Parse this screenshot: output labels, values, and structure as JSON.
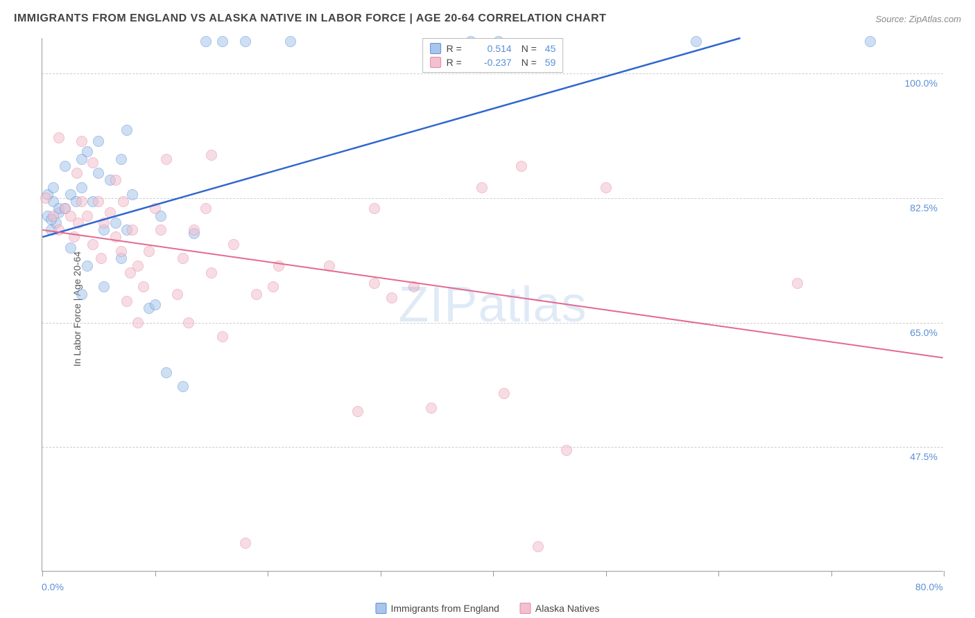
{
  "header": {
    "title": "IMMIGRANTS FROM ENGLAND VS ALASKA NATIVE IN LABOR FORCE | AGE 20-64 CORRELATION CHART",
    "source": "Source: ZipAtlas.com"
  },
  "chart": {
    "type": "scatter",
    "y_axis_title": "In Labor Force | Age 20-64",
    "watermark_text": "ZIPatlas",
    "background_color": "#ffffff",
    "grid_color": "#cccccc",
    "axis_color": "#999999",
    "label_color": "#5b8fd6",
    "label_fontsize": 14,
    "title_fontsize": 16,
    "title_color": "#444444",
    "xlim": [
      0,
      80
    ],
    "ylim": [
      30,
      105
    ],
    "x_ticks": [
      0,
      10,
      20,
      30,
      40,
      50,
      60,
      70,
      80
    ],
    "x_tick_labels": {
      "0": "0.0%",
      "80": "80.0%"
    },
    "y_gridlines": [
      47.5,
      65.0,
      82.5,
      100.0
    ],
    "y_tick_labels": [
      "47.5%",
      "65.0%",
      "82.5%",
      "100.0%"
    ],
    "point_radius": 8,
    "point_opacity": 0.55,
    "series": [
      {
        "name": "Immigrants from England",
        "fill_color": "#a9c5eb",
        "stroke_color": "#5b8fd6",
        "line_color": "#2f66d0",
        "line_width": 2.5,
        "R": "0.514",
        "N": "45",
        "trend": {
          "x1": 0,
          "y1": 77,
          "x2": 62,
          "y2": 105
        },
        "points": [
          [
            0.5,
            80
          ],
          [
            0.8,
            78
          ],
          [
            1.0,
            82
          ],
          [
            1.2,
            79
          ],
          [
            1.5,
            80.5
          ],
          [
            0.5,
            83
          ],
          [
            1.0,
            84
          ],
          [
            1.5,
            81
          ],
          [
            0.8,
            79.5
          ],
          [
            2.0,
            81
          ],
          [
            2.5,
            83
          ],
          [
            2.0,
            87
          ],
          [
            3.0,
            82
          ],
          [
            3.5,
            88
          ],
          [
            3.5,
            84
          ],
          [
            4.0,
            89
          ],
          [
            4.5,
            82
          ],
          [
            5.0,
            86
          ],
          [
            5.0,
            90.5
          ],
          [
            5.5,
            78
          ],
          [
            6.0,
            85
          ],
          [
            6.5,
            79
          ],
          [
            7.0,
            88
          ],
          [
            7.5,
            92
          ],
          [
            7.5,
            78
          ],
          [
            8.0,
            83
          ],
          [
            9.5,
            67
          ],
          [
            10.0,
            67.5
          ],
          [
            10.5,
            80
          ],
          [
            11.0,
            58
          ],
          [
            3.5,
            69
          ],
          [
            5.5,
            70
          ],
          [
            7.0,
            74
          ],
          [
            12.5,
            56
          ],
          [
            13.5,
            77.5
          ],
          [
            14.5,
            104.5
          ],
          [
            16.0,
            104.5
          ],
          [
            18.0,
            104.5
          ],
          [
            22.0,
            104.5
          ],
          [
            38.0,
            104.5
          ],
          [
            40.5,
            104.5
          ],
          [
            58.0,
            104.5
          ],
          [
            73.5,
            104.5
          ],
          [
            4.0,
            73
          ],
          [
            2.5,
            75.5
          ]
        ]
      },
      {
        "name": "Alaska Natives",
        "fill_color": "#f2c0cf",
        "stroke_color": "#e589a4",
        "line_color": "#e26a8f",
        "line_width": 2,
        "R": "-0.237",
        "N": "59",
        "trend": {
          "x1": 0,
          "y1": 78,
          "x2": 80,
          "y2": 60
        },
        "points": [
          [
            0.3,
            82.5
          ],
          [
            1.0,
            80
          ],
          [
            1.5,
            91
          ],
          [
            1.5,
            78
          ],
          [
            2.0,
            81
          ],
          [
            2.5,
            80
          ],
          [
            2.8,
            77
          ],
          [
            3.1,
            86
          ],
          [
            3.2,
            79
          ],
          [
            3.5,
            90.5
          ],
          [
            3.5,
            82
          ],
          [
            4.0,
            80
          ],
          [
            4.5,
            87.5
          ],
          [
            4.5,
            76
          ],
          [
            5.0,
            82
          ],
          [
            5.5,
            79
          ],
          [
            5.2,
            74
          ],
          [
            6.0,
            80.5
          ],
          [
            6.5,
            77
          ],
          [
            7.0,
            75
          ],
          [
            7.2,
            82
          ],
          [
            7.5,
            68
          ],
          [
            7.8,
            72
          ],
          [
            8.0,
            78
          ],
          [
            8.5,
            65
          ],
          [
            8.5,
            73
          ],
          [
            9.0,
            70
          ],
          [
            9.5,
            75
          ],
          [
            10.0,
            81
          ],
          [
            10.5,
            78
          ],
          [
            6.5,
            85
          ],
          [
            11.0,
            88
          ],
          [
            12.0,
            69
          ],
          [
            12.5,
            74
          ],
          [
            13.0,
            65
          ],
          [
            13.5,
            78
          ],
          [
            14.5,
            81
          ],
          [
            15.0,
            72
          ],
          [
            15.0,
            88.5
          ],
          [
            16.0,
            63
          ],
          [
            17.0,
            76
          ],
          [
            18.0,
            34
          ],
          [
            19.0,
            69
          ],
          [
            20.5,
            70
          ],
          [
            21.0,
            73
          ],
          [
            25.5,
            73
          ],
          [
            28.0,
            52.5
          ],
          [
            29.5,
            81
          ],
          [
            29.5,
            70.5
          ],
          [
            31.0,
            68.5
          ],
          [
            33.0,
            70
          ],
          [
            34.5,
            53
          ],
          [
            39.0,
            84
          ],
          [
            41.0,
            55
          ],
          [
            42.5,
            87
          ],
          [
            44.0,
            33.5
          ],
          [
            46.5,
            47
          ],
          [
            50.0,
            84
          ],
          [
            67.0,
            70.5
          ]
        ]
      }
    ],
    "legend_bottom": [
      {
        "label": "Immigrants from England",
        "fill": "#a9c5eb",
        "stroke": "#5b8fd6"
      },
      {
        "label": "Alaska Natives",
        "fill": "#f2c0cf",
        "stroke": "#e589a4"
      }
    ]
  }
}
